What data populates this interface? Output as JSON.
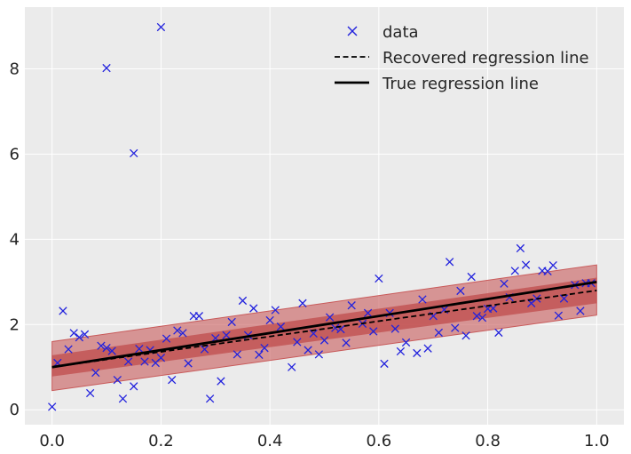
{
  "chart_data": {
    "type": "scatter",
    "title": "",
    "xlabel": "",
    "ylabel": "",
    "xlim": [
      -0.05,
      1.05
    ],
    "ylim": [
      -0.35,
      9.45
    ],
    "grid": true,
    "legend_position": "top-right",
    "x_ticks": [
      0.0,
      0.2,
      0.4,
      0.6,
      0.8,
      1.0
    ],
    "x_tick_labels": [
      "0.0",
      "0.2",
      "0.4",
      "0.6",
      "0.8",
      "1.0"
    ],
    "y_ticks": [
      0,
      2,
      4,
      6,
      8
    ],
    "y_tick_labels": [
      "0",
      "2",
      "4",
      "6",
      "8"
    ],
    "legend": {
      "data": "data",
      "recovered": "Recovered regression line",
      "true": "True regression line"
    },
    "colors": {
      "background": "#ebebeb",
      "grid": "#ffffff",
      "points": "#2222dd",
      "band_outer": "#c85a5a",
      "band_inner": "#b83232",
      "line": "#000000"
    },
    "true_line": {
      "x": [
        0,
        1
      ],
      "y": [
        1.0,
        3.0
      ]
    },
    "recovered_line": {
      "x": [
        0,
        1
      ],
      "y": [
        1.0,
        2.8
      ]
    },
    "band_outer": {
      "x": [
        0,
        1
      ],
      "lower": [
        0.45,
        2.22
      ],
      "upper": [
        1.6,
        3.4
      ]
    },
    "band_inner": {
      "x": [
        0,
        1
      ],
      "lower": [
        0.78,
        2.5
      ],
      "upper": [
        1.28,
        3.1
      ]
    },
    "series": [
      {
        "name": "data",
        "points": [
          [
            0.0,
            0.07
          ],
          [
            0.01,
            1.1
          ],
          [
            0.02,
            2.32
          ],
          [
            0.03,
            1.42
          ],
          [
            0.04,
            1.8
          ],
          [
            0.05,
            1.7
          ],
          [
            0.06,
            1.77
          ],
          [
            0.07,
            0.39
          ],
          [
            0.08,
            0.87
          ],
          [
            0.09,
            1.5
          ],
          [
            0.1,
            8.02
          ],
          [
            0.1,
            1.45
          ],
          [
            0.11,
            1.38
          ],
          [
            0.12,
            0.7
          ],
          [
            0.13,
            0.26
          ],
          [
            0.14,
            1.13
          ],
          [
            0.15,
            6.02
          ],
          [
            0.15,
            0.55
          ],
          [
            0.16,
            1.43
          ],
          [
            0.17,
            1.13
          ],
          [
            0.18,
            1.4
          ],
          [
            0.19,
            1.1
          ],
          [
            0.2,
            8.98
          ],
          [
            0.2,
            1.22
          ],
          [
            0.21,
            1.67
          ],
          [
            0.22,
            0.7
          ],
          [
            0.23,
            1.86
          ],
          [
            0.24,
            1.8
          ],
          [
            0.25,
            1.09
          ],
          [
            0.26,
            2.2
          ],
          [
            0.27,
            2.2
          ],
          [
            0.28,
            1.42
          ],
          [
            0.29,
            0.26
          ],
          [
            0.3,
            1.68
          ],
          [
            0.31,
            0.67
          ],
          [
            0.32,
            1.75
          ],
          [
            0.33,
            2.06
          ],
          [
            0.34,
            1.3
          ],
          [
            0.35,
            2.56
          ],
          [
            0.36,
            1.75
          ],
          [
            0.37,
            2.38
          ],
          [
            0.38,
            1.29
          ],
          [
            0.39,
            1.45
          ],
          [
            0.4,
            2.1
          ],
          [
            0.41,
            2.34
          ],
          [
            0.42,
            1.95
          ],
          [
            0.44,
            1.0
          ],
          [
            0.45,
            1.59
          ],
          [
            0.46,
            2.5
          ],
          [
            0.47,
            1.4
          ],
          [
            0.48,
            1.79
          ],
          [
            0.49,
            1.3
          ],
          [
            0.5,
            1.63
          ],
          [
            0.51,
            2.17
          ],
          [
            0.52,
            1.92
          ],
          [
            0.53,
            1.89
          ],
          [
            0.54,
            1.57
          ],
          [
            0.55,
            2.45
          ],
          [
            0.57,
            2.02
          ],
          [
            0.58,
            2.27
          ],
          [
            0.59,
            1.84
          ],
          [
            0.6,
            3.08
          ],
          [
            0.61,
            1.08
          ],
          [
            0.62,
            2.27
          ],
          [
            0.63,
            1.9
          ],
          [
            0.64,
            1.37
          ],
          [
            0.65,
            1.58
          ],
          [
            0.67,
            1.33
          ],
          [
            0.68,
            2.59
          ],
          [
            0.69,
            1.44
          ],
          [
            0.7,
            2.2
          ],
          [
            0.71,
            1.81
          ],
          [
            0.72,
            2.35
          ],
          [
            0.73,
            3.47
          ],
          [
            0.74,
            1.92
          ],
          [
            0.75,
            2.79
          ],
          [
            0.76,
            1.74
          ],
          [
            0.77,
            3.12
          ],
          [
            0.78,
            2.2
          ],
          [
            0.79,
            2.16
          ],
          [
            0.8,
            2.37
          ],
          [
            0.81,
            2.38
          ],
          [
            0.82,
            1.81
          ],
          [
            0.83,
            2.96
          ],
          [
            0.84,
            2.64
          ],
          [
            0.85,
            3.26
          ],
          [
            0.86,
            3.79
          ],
          [
            0.87,
            3.4
          ],
          [
            0.88,
            2.5
          ],
          [
            0.89,
            2.61
          ],
          [
            0.9,
            3.26
          ],
          [
            0.91,
            3.25
          ],
          [
            0.92,
            3.39
          ],
          [
            0.93,
            2.21
          ],
          [
            0.94,
            2.61
          ],
          [
            0.96,
            2.93
          ],
          [
            0.97,
            2.32
          ],
          [
            0.98,
            2.97
          ],
          [
            0.99,
            2.97
          ]
        ]
      }
    ]
  }
}
